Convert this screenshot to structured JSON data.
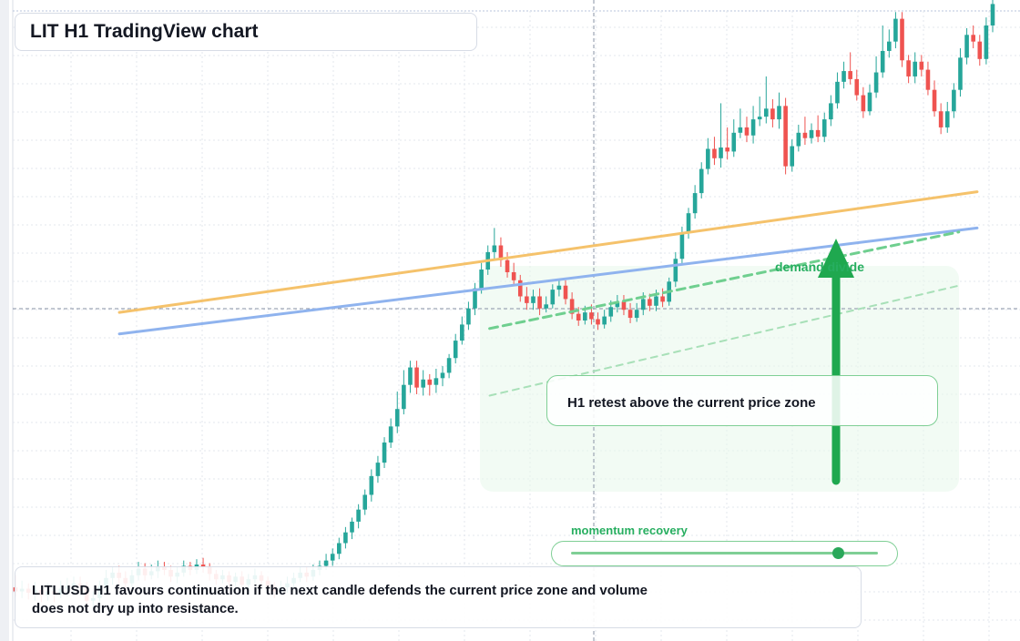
{
  "header": {
    "title": "LIT H1 TradingView chart"
  },
  "annotations": {
    "callout": "H1 retest above the current price zone",
    "demand_label": "demand divide",
    "momentum_label": "momentum recovery",
    "momentum_level": 0.87
  },
  "summary": {
    "text": "LITLUSD H1 favours continuation if the next candle defends the current price zone and volume does not dry up into resistance."
  },
  "colors": {
    "up": "#26a69a",
    "down": "#ef5350",
    "orange_line": "#f5c26b",
    "blue_line": "#8fb3ee",
    "green_dashed": "#6fcf8f",
    "arrow": "#1fa84f",
    "zone": "#e9f8ec"
  },
  "chart_data": {
    "type": "candlestick",
    "title": "",
    "candles": [
      [
        36.7,
        36.4,
        36.0,
        37.6
      ],
      [
        36.4,
        36.6,
        35.9,
        37.2
      ],
      [
        36.6,
        36.3,
        35.8,
        37.0
      ],
      [
        36.3,
        36.5,
        35.7,
        37.1
      ],
      [
        36.5,
        36.1,
        35.6,
        36.8
      ],
      [
        36.1,
        36.4,
        35.7,
        37.0
      ],
      [
        36.4,
        36.2,
        35.6,
        36.9
      ],
      [
        36.2,
        36.6,
        35.9,
        37.2
      ],
      [
        36.6,
        36.8,
        36.0,
        37.4
      ],
      [
        36.8,
        37.0,
        36.3,
        37.5
      ],
      [
        37.0,
        36.8,
        36.4,
        37.5
      ],
      [
        36.8,
        35.7,
        35.3,
        37.1
      ],
      [
        35.7,
        35.9,
        35.2,
        36.4
      ],
      [
        35.9,
        36.8,
        35.6,
        37.2
      ],
      [
        36.8,
        37.4,
        36.4,
        38.0
      ],
      [
        37.4,
        37.8,
        36.9,
        38.2
      ],
      [
        37.8,
        37.4,
        36.9,
        38.3
      ],
      [
        37.4,
        37.0,
        36.6,
        37.9
      ],
      [
        37.0,
        37.6,
        36.7,
        38.0
      ],
      [
        37.6,
        38.1,
        37.2,
        38.6
      ],
      [
        38.1,
        37.6,
        37.2,
        38.5
      ],
      [
        37.6,
        37.9,
        37.3,
        38.4
      ],
      [
        37.9,
        38.2,
        37.4,
        38.7
      ],
      [
        38.2,
        38.0,
        37.6,
        38.6
      ],
      [
        38.0,
        37.5,
        37.1,
        38.3
      ],
      [
        37.5,
        37.8,
        37.0,
        38.2
      ],
      [
        37.8,
        38.3,
        37.5,
        38.7
      ],
      [
        38.3,
        38.0,
        37.6,
        38.6
      ],
      [
        38.0,
        38.4,
        37.7,
        38.8
      ],
      [
        38.4,
        38.2,
        37.8,
        38.9
      ],
      [
        38.2,
        37.7,
        37.2,
        38.5
      ],
      [
        37.7,
        37.3,
        36.9,
        38.0
      ],
      [
        37.3,
        37.6,
        37.0,
        38.0
      ],
      [
        37.6,
        37.1,
        36.6,
        37.9
      ],
      [
        37.1,
        37.5,
        36.8,
        37.8
      ],
      [
        37.5,
        36.9,
        36.5,
        37.9
      ],
      [
        36.9,
        37.3,
        36.6,
        37.7
      ],
      [
        37.3,
        37.6,
        37.0,
        38.1
      ],
      [
        37.6,
        37.2,
        36.8,
        37.9
      ],
      [
        37.2,
        36.8,
        36.4,
        37.5
      ],
      [
        36.8,
        36.4,
        35.9,
        37.1
      ],
      [
        36.4,
        36.7,
        36.1,
        37.2
      ],
      [
        36.7,
        37.0,
        36.3,
        37.5
      ],
      [
        37.0,
        37.4,
        36.7,
        37.8
      ],
      [
        37.4,
        37.8,
        37.1,
        38.2
      ],
      [
        37.8,
        37.5,
        37.1,
        38.2
      ],
      [
        37.5,
        38.0,
        37.2,
        38.4
      ],
      [
        38.0,
        38.3,
        37.6,
        38.7
      ],
      [
        38.3,
        38.7,
        38.0,
        39.2
      ],
      [
        38.7,
        39.2,
        38.3,
        39.6
      ],
      [
        39.2,
        40.0,
        38.8,
        40.4
      ],
      [
        40.0,
        40.8,
        39.6,
        41.2
      ],
      [
        40.8,
        41.6,
        40.3,
        41.9
      ],
      [
        41.6,
        42.5,
        41.1,
        42.9
      ],
      [
        42.5,
        43.6,
        42.1,
        44.0
      ],
      [
        43.6,
        45.0,
        43.1,
        45.5
      ],
      [
        45.0,
        46.0,
        44.5,
        46.5
      ],
      [
        46.0,
        47.5,
        45.6,
        47.9
      ],
      [
        47.5,
        48.7,
        47.1,
        49.3
      ],
      [
        48.7,
        50.0,
        48.2,
        51.3
      ],
      [
        50.0,
        51.8,
        49.6,
        52.9
      ],
      [
        51.8,
        53.1,
        51.2,
        53.6
      ],
      [
        53.1,
        51.6,
        51.1,
        53.6
      ],
      [
        51.6,
        52.2,
        51.0,
        52.9
      ],
      [
        52.2,
        51.8,
        51.0,
        52.6
      ],
      [
        51.8,
        52.3,
        51.2,
        53.0
      ],
      [
        52.3,
        52.7,
        51.7,
        53.2
      ],
      [
        52.7,
        53.8,
        52.3,
        54.1
      ],
      [
        53.8,
        55.1,
        53.4,
        55.6
      ],
      [
        55.1,
        56.3,
        54.8,
        56.9
      ],
      [
        56.3,
        57.5,
        55.9,
        58.0
      ],
      [
        57.5,
        59.0,
        57.0,
        59.4
      ],
      [
        59.0,
        60.4,
        58.6,
        60.9
      ],
      [
        60.4,
        61.7,
        60.0,
        62.2
      ],
      [
        61.7,
        62.2,
        61.2,
        63.5
      ],
      [
        62.2,
        61.1,
        60.6,
        62.8
      ],
      [
        61.1,
        60.2,
        59.8,
        61.7
      ],
      [
        60.2,
        59.6,
        59.2,
        60.9
      ],
      [
        59.6,
        58.4,
        58.0,
        60.0
      ],
      [
        58.4,
        57.9,
        57.4,
        59.1
      ],
      [
        57.9,
        58.4,
        57.4,
        58.9
      ],
      [
        58.4,
        57.5,
        57.0,
        59.0
      ],
      [
        57.5,
        57.8,
        57.2,
        58.4
      ],
      [
        57.8,
        58.9,
        57.5,
        59.3
      ],
      [
        58.9,
        59.2,
        58.4,
        59.7
      ],
      [
        59.2,
        58.2,
        57.8,
        59.6
      ],
      [
        58.2,
        57.1,
        56.7,
        58.7
      ],
      [
        57.1,
        56.6,
        56.2,
        57.6
      ],
      [
        56.6,
        57.2,
        56.3,
        57.7
      ],
      [
        57.2,
        56.7,
        56.3,
        57.8
      ],
      [
        56.7,
        56.3,
        55.9,
        57.2
      ],
      [
        56.3,
        56.9,
        56.0,
        57.4
      ],
      [
        56.9,
        57.6,
        56.5,
        58.1
      ],
      [
        57.6,
        58.0,
        57.2,
        58.5
      ],
      [
        58.0,
        57.4,
        57.0,
        58.5
      ],
      [
        57.4,
        56.8,
        56.4,
        57.9
      ],
      [
        56.8,
        57.4,
        56.5,
        57.9
      ],
      [
        57.4,
        58.2,
        57.0,
        58.7
      ],
      [
        58.2,
        57.7,
        57.3,
        58.6
      ],
      [
        57.7,
        58.4,
        57.3,
        58.9
      ],
      [
        58.4,
        58.0,
        57.6,
        59.0
      ],
      [
        58.0,
        59.5,
        57.7,
        59.8
      ],
      [
        59.5,
        61.2,
        59.1,
        61.7
      ],
      [
        61.2,
        63.1,
        60.8,
        63.6
      ],
      [
        63.1,
        64.6,
        62.7,
        65.0
      ],
      [
        64.6,
        66.1,
        64.2,
        66.7
      ],
      [
        66.1,
        67.9,
        65.7,
        68.4
      ],
      [
        67.9,
        69.4,
        67.5,
        70.2
      ],
      [
        69.4,
        68.7,
        68.2,
        70.3
      ],
      [
        68.7,
        69.5,
        68.0,
        72.8
      ],
      [
        69.5,
        69.2,
        68.6,
        71.0
      ],
      [
        69.2,
        70.6,
        68.8,
        71.6
      ],
      [
        70.6,
        71.0,
        70.2,
        72.4
      ],
      [
        71.0,
        70.4,
        69.9,
        71.8
      ],
      [
        70.4,
        71.6,
        69.8,
        72.6
      ],
      [
        71.6,
        71.8,
        71.1,
        73.3
      ],
      [
        71.8,
        72.4,
        71.3,
        74.8
      ],
      [
        72.4,
        71.6,
        71.0,
        73.1
      ],
      [
        71.6,
        72.6,
        70.9,
        73.6
      ],
      [
        72.6,
        68.1,
        67.5,
        73.2
      ],
      [
        68.1,
        69.6,
        67.7,
        70.1
      ],
      [
        69.6,
        70.6,
        69.2,
        71.2
      ],
      [
        70.6,
        70.2,
        69.7,
        71.8
      ],
      [
        70.2,
        70.8,
        69.8,
        71.3
      ],
      [
        70.8,
        70.3,
        69.9,
        71.9
      ],
      [
        70.3,
        71.6,
        69.9,
        72.1
      ],
      [
        71.6,
        72.8,
        71.1,
        73.4
      ],
      [
        72.8,
        74.4,
        72.4,
        75.1
      ],
      [
        74.4,
        75.2,
        73.9,
        75.9
      ],
      [
        75.2,
        74.6,
        74.2,
        76.6
      ],
      [
        74.6,
        73.4,
        73.0,
        75.3
      ],
      [
        73.4,
        72.2,
        71.7,
        74.0
      ],
      [
        72.2,
        73.6,
        71.9,
        74.2
      ],
      [
        73.6,
        75.1,
        73.2,
        76.3
      ],
      [
        75.1,
        76.7,
        74.7,
        78.6
      ],
      [
        76.7,
        77.4,
        76.2,
        78.3
      ],
      [
        77.4,
        79.1,
        76.9,
        79.6
      ],
      [
        79.1,
        76.0,
        75.5,
        79.6
      ],
      [
        76.0,
        74.8,
        74.3,
        76.4
      ],
      [
        74.8,
        75.9,
        74.3,
        76.6
      ],
      [
        75.9,
        75.3,
        74.8,
        76.4
      ],
      [
        75.3,
        73.8,
        73.4,
        75.9
      ],
      [
        73.8,
        72.2,
        71.8,
        74.5
      ],
      [
        72.2,
        71.0,
        70.5,
        72.8
      ],
      [
        71.0,
        72.2,
        70.6,
        72.9
      ],
      [
        72.2,
        73.8,
        71.7,
        74.3
      ],
      [
        73.8,
        76.2,
        73.3,
        76.9
      ],
      [
        76.2,
        77.9,
        75.7,
        78.4
      ],
      [
        77.9,
        77.4,
        76.9,
        78.6
      ],
      [
        77.4,
        76.1,
        75.6,
        77.9
      ],
      [
        76.1,
        78.6,
        75.7,
        79.2
      ],
      [
        78.6,
        80.2,
        78.1,
        80.7
      ]
    ],
    "overlays": [
      {
        "type": "line",
        "role": "resistance",
        "from": [
          0.117,
          57.2
        ],
        "to": [
          0.958,
          66.2
        ]
      },
      {
        "type": "line",
        "role": "support",
        "from": [
          0.117,
          55.6
        ],
        "to": [
          0.958,
          63.5
        ]
      },
      {
        "type": "dashed",
        "role": "trend",
        "from": [
          0.48,
          56.0
        ],
        "to": [
          0.94,
          63.2
        ]
      },
      {
        "type": "dashed-light",
        "role": "trend-lower",
        "from": [
          0.48,
          51.0
        ],
        "to": [
          0.94,
          59.2
        ]
      }
    ],
    "ylim": [
      32.7,
      80.5
    ]
  }
}
